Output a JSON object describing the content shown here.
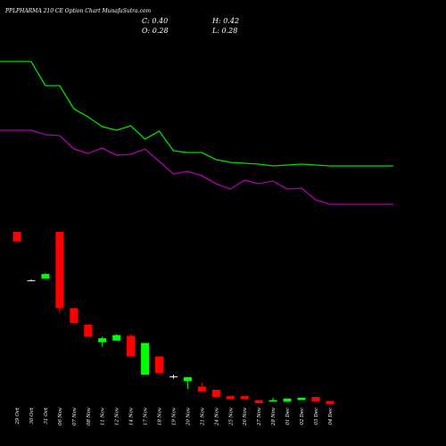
{
  "header": {
    "title": "PPLPHARMA 210 CE Option Chart MunafaSutra.com",
    "close": "C: 0.40",
    "high": "H: 0.42",
    "open": "O: 0.28",
    "low": "L: 0.28"
  },
  "colors": {
    "background": "#000000",
    "up": "#00ff00",
    "down": "#ff0000",
    "doji": "#ffffff",
    "line_upper": "#00dd00",
    "line_lower": "#b000b0",
    "text": "#ffffff"
  },
  "chart_data": {
    "type": "candlestick",
    "x_axis": "dates",
    "y_axis_labels": false,
    "categories": [
      "29 Oct",
      "30 Oct",
      "31 Oct",
      "06 Nov",
      "07 Nov",
      "08 Nov",
      "11 Nov",
      "12 Nov",
      "14 Nov",
      "17 Nov",
      "18 Nov",
      "19 Nov",
      "20 Nov",
      "21 Nov",
      "24 Nov",
      "25 Nov",
      "26 Nov",
      "27 Nov",
      "28 Nov",
      "01 Dec",
      "02 Dec",
      "03 Dec",
      "04 Dec"
    ],
    "candles": [
      {
        "open": 18.8,
        "close": 17.6,
        "high": 18.8,
        "low": 17.6
      },
      {
        "open": 12.7,
        "close": 12.7,
        "high": 12.8,
        "low": 12.6
      },
      {
        "open": 12.9,
        "close": 13.5,
        "high": 13.6,
        "low": 12.9
      },
      {
        "open": 18.8,
        "close": 9.2,
        "high": 18.8,
        "low": 8.6
      },
      {
        "open": 9.2,
        "close": 7.3,
        "high": 9.2,
        "low": 7.3
      },
      {
        "open": 7.1,
        "close": 5.6,
        "high": 7.1,
        "low": 5.6
      },
      {
        "open": 4.9,
        "close": 5.4,
        "high": 5.6,
        "low": 4.3
      },
      {
        "open": 5.1,
        "close": 5.8,
        "high": 5.9,
        "low": 5.1
      },
      {
        "open": 5.7,
        "close": 3.1,
        "high": 5.9,
        "low": 3.1
      },
      {
        "open": 0.8,
        "close": 4.8,
        "high": 4.8,
        "low": 0.8
      },
      {
        "open": 3.1,
        "close": 1.0,
        "high": 3.1,
        "low": 1.0
      },
      {
        "open": 0.6,
        "close": 0.6,
        "high": 0.8,
        "low": 0.3
      },
      {
        "open": 0.0,
        "close": 0.5,
        "high": 0.5,
        "low": -1.0
      },
      {
        "open": -0.7,
        "close": -1.3,
        "high": -0.2,
        "low": -1.3
      },
      {
        "open": -1.1,
        "close": -2.0,
        "high": -1.1,
        "low": -2.0
      },
      {
        "open": -1.9,
        "close": -2.3,
        "high": -1.9,
        "low": -2.3
      },
      {
        "open": -1.9,
        "close": -2.3,
        "high": -1.9,
        "low": -2.3
      },
      {
        "open": -2.4,
        "close": -2.8,
        "high": -2.4,
        "low": -2.8
      },
      {
        "open": -2.6,
        "close": -2.4,
        "high": -2.1,
        "low": -2.6
      },
      {
        "open": -2.6,
        "close": -2.2,
        "high": -2.2,
        "low": -2.6
      },
      {
        "open": -2.4,
        "close": -2.1,
        "high": -2.1,
        "low": -2.4
      },
      {
        "open": -2.0,
        "close": -2.6,
        "high": -2.0,
        "low": -2.6
      },
      {
        "open": -2.5,
        "close": -2.9,
        "high": -2.5,
        "low": -2.9
      }
    ],
    "line_upper": [
      69,
      69,
      96,
      96,
      122,
      131,
      142,
      146,
      141,
      156,
      147,
      169,
      171,
      171,
      179,
      182,
      183,
      184,
      186,
      185,
      184,
      185,
      186
    ],
    "line_lower": [
      146,
      146,
      151,
      152,
      167,
      172,
      166,
      174,
      173,
      167,
      181,
      195,
      192,
      197,
      206,
      212,
      202,
      206,
      203,
      212,
      211,
      224,
      229
    ]
  }
}
